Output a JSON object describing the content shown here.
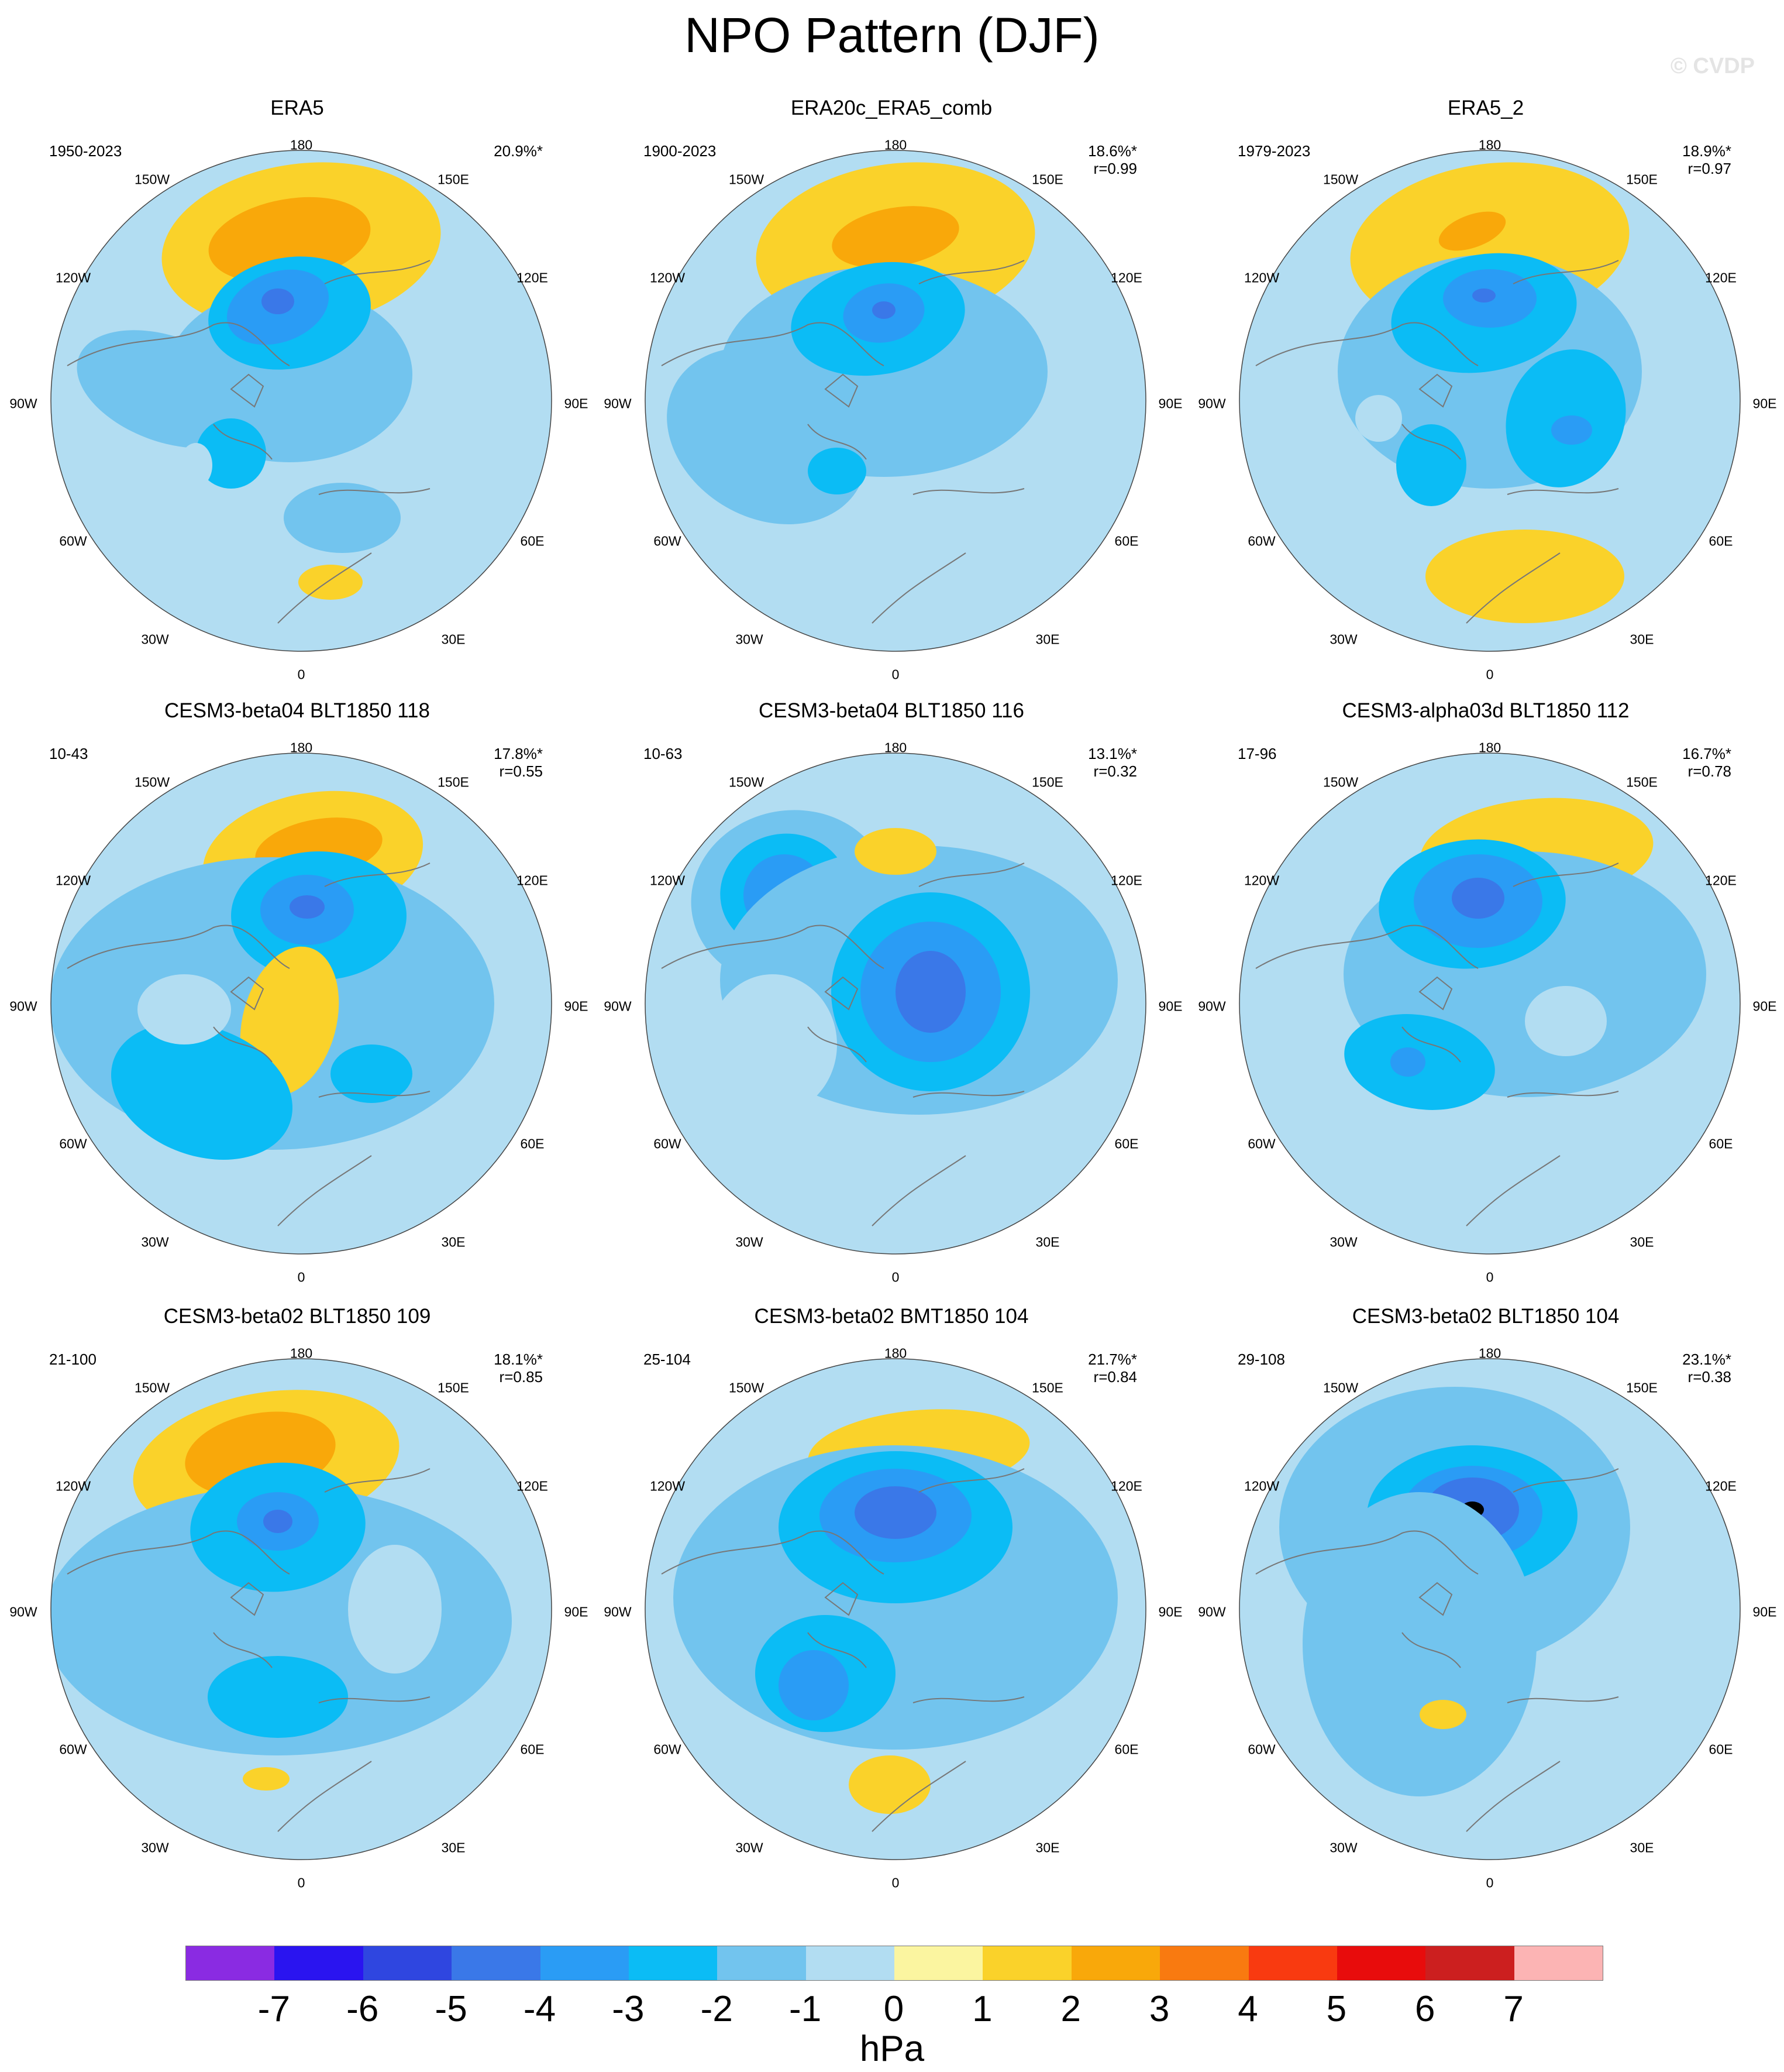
{
  "title": "NPO Pattern (DJF)",
  "watermark": "© CVDP",
  "longitude_labels": [
    "180",
    "150W",
    "150E",
    "120W",
    "120E",
    "90W",
    "90E",
    "60W",
    "60E",
    "30W",
    "30E",
    "0"
  ],
  "panels": [
    {
      "title": "ERA5",
      "years": "1950-2023",
      "pct": "20.9%*",
      "r": ""
    },
    {
      "title": "ERA20c_ERA5_comb",
      "years": "1900-2023",
      "pct": "18.6%*",
      "r": "r=0.99"
    },
    {
      "title": "ERA5_2",
      "years": "1979-2023",
      "pct": "18.9%*",
      "r": "r=0.97"
    },
    {
      "title": "CESM3-beta04 BLT1850 118",
      "years": "10-43",
      "pct": "17.8%*",
      "r": "r=0.55"
    },
    {
      "title": "CESM3-beta04 BLT1850 116",
      "years": "10-63",
      "pct": "13.1%*",
      "r": "r=0.32"
    },
    {
      "title": "CESM3-alpha03d BLT1850 112",
      "years": "17-96",
      "pct": "16.7%*",
      "r": "r=0.78"
    },
    {
      "title": "CESM3-beta02 BLT1850 109",
      "years": "21-100",
      "pct": "18.1%*",
      "r": "r=0.85"
    },
    {
      "title": "CESM3-beta02 BMT1850 104",
      "years": "25-104",
      "pct": "21.7%*",
      "r": "r=0.84"
    },
    {
      "title": "CESM3-beta02 BLT1850 104",
      "years": "29-108",
      "pct": "23.1%*",
      "r": "r=0.38"
    }
  ],
  "colorbar": {
    "units": "hPa",
    "ticks": [
      "-7",
      "-6",
      "-5",
      "-4",
      "-3",
      "-2",
      "-1",
      "0",
      "1",
      "2",
      "3",
      "4",
      "5",
      "6",
      "7"
    ],
    "colors": [
      "#8a2be2",
      "#2a14f0",
      "#2f46e0",
      "#3a78e8",
      "#2a9cf5",
      "#0bbcf5",
      "#72c4ee",
      "#b2ddf2",
      "#fbf5a0",
      "#fad22a",
      "#f9a80a",
      "#f97a10",
      "#f93a10",
      "#e80c0c",
      "#cc1f1f",
      "#fcb4b4"
    ]
  }
}
